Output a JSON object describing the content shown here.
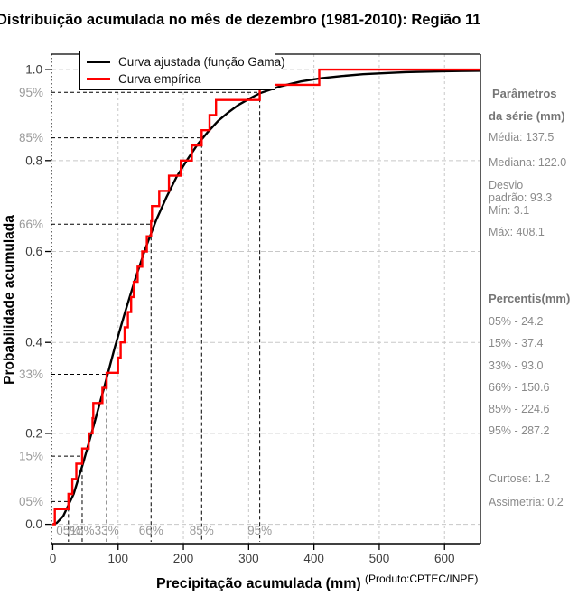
{
  "title": "Distribuição acumulada no mês de dezembro (1981-2010): Região 11",
  "chart_data": {
    "type": "line",
    "title": "Distribuição acumulada no mês de dezembro (1981-2010): Região 11",
    "xlabel": "Precipitação acumulada (mm)",
    "xlabel_note": "(Produto:CPTEC/INPE)",
    "ylabel": "Probabilidade acumulada",
    "xlim": [
      -2,
      655
    ],
    "ylim": [
      -0.0425,
      1.034
    ],
    "x_ticks": [
      0,
      100,
      200,
      300,
      400,
      500,
      600
    ],
    "y_ticks": [
      "0.0",
      "0.2",
      "0.4",
      "0.6",
      "0.8",
      "1.0"
    ],
    "grid": true,
    "legend_position": "top-left",
    "legend": {
      "entries": [
        {
          "label": "Curva ajustada (função Gama)",
          "color": "#000000"
        },
        {
          "label": "Curva empírica",
          "color": "#ff0000"
        }
      ]
    },
    "percent_guides": {
      "labels": [
        "05%",
        "15%",
        "33%",
        "66%",
        "85%",
        "95%"
      ],
      "p": [
        0.05,
        0.15,
        0.33,
        0.66,
        0.85,
        0.95
      ],
      "x_mm": [
        24,
        45,
        82.5,
        150.5,
        228,
        317
      ]
    },
    "series": [
      {
        "name": "Curva ajustada (função Gama)",
        "kind": "gamma-cdf-fit",
        "color": "#000000",
        "points": [
          [
            0,
            0
          ],
          [
            6,
            0.003
          ],
          [
            16,
            0.018
          ],
          [
            32,
            0.067
          ],
          [
            47,
            0.137
          ],
          [
            63,
            0.219
          ],
          [
            79,
            0.303
          ],
          [
            95,
            0.389
          ],
          [
            111,
            0.468
          ],
          [
            127,
            0.543
          ],
          [
            142,
            0.607
          ],
          [
            158,
            0.668
          ],
          [
            174,
            0.719
          ],
          [
            190,
            0.765
          ],
          [
            206,
            0.802
          ],
          [
            222,
            0.836
          ],
          [
            237,
            0.862
          ],
          [
            253,
            0.887
          ],
          [
            269,
            0.906
          ],
          [
            285,
            0.923
          ],
          [
            301,
            0.936
          ],
          [
            317,
            0.948
          ],
          [
            348,
            0.963
          ],
          [
            380,
            0.974
          ],
          [
            410,
            0.981
          ],
          [
            443,
            0.986
          ],
          [
            475,
            0.99
          ],
          [
            507,
            0.992
          ],
          [
            540,
            0.9945
          ],
          [
            570,
            0.9955
          ],
          [
            600,
            0.9965
          ],
          [
            654,
            0.9975
          ]
        ]
      },
      {
        "name": "Curva empírica",
        "kind": "ecdf-step",
        "color": "#ff0000",
        "sorted_values_mm": [
          3.1,
          24,
          30,
          36,
          45,
          55,
          61,
          62,
          76,
          82.5,
          100,
          104,
          110,
          115,
          120,
          124,
          130,
          137,
          144,
          150.5,
          152,
          163,
          178,
          196,
          213,
          228,
          240,
          250,
          317,
          408.1
        ]
      }
    ]
  },
  "sidebar": {
    "header_line1": "Parâmetros",
    "header_line2": "da série (mm)",
    "media": "Média: 137.5",
    "mediana": "Mediana: 122.0",
    "desvio_line1": "Desvio",
    "desvio_line2": "padrão: 93.3",
    "min": "Mín: 3.1",
    "max": "Máx: 408.1",
    "percentis_header": "Percentis(mm)",
    "percentis": [
      "05% - 24.2",
      "15% - 37.4",
      "33% - 93.0",
      "66% - 150.6",
      "85% - 224.6",
      "95% - 287.2"
    ],
    "curtose": "Curtose: 1.2",
    "assimetria": "Assimetria: 0.2"
  },
  "colors": {
    "fitted_curve": "#000000",
    "empirical_curve": "#ff0000",
    "gridline": "#c8c8c8",
    "guide_dashed": "#000000",
    "tick_label": "#3d3d3d",
    "percent_label": "#9a9a9a",
    "sidebar_text": "#8a8a8a",
    "background": "#ffffff"
  }
}
